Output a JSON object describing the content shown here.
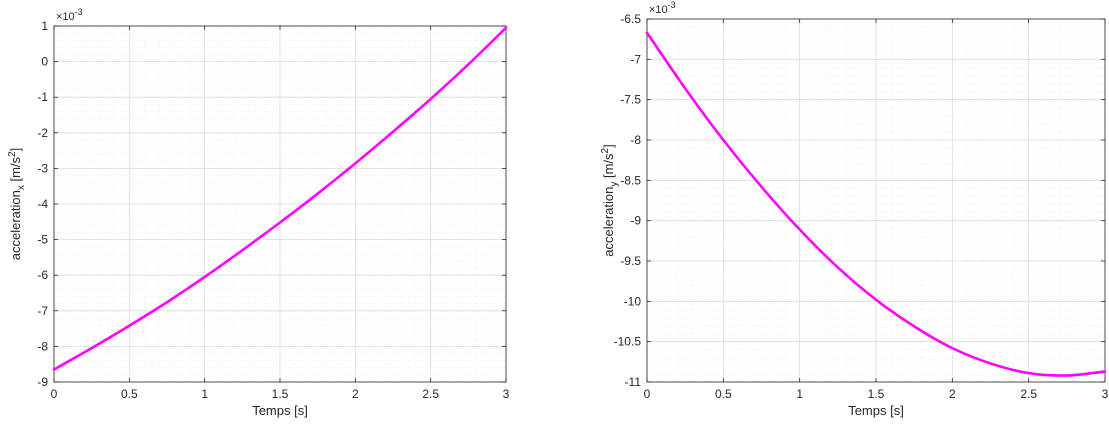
{
  "chart_data": [
    {
      "type": "line",
      "xlabel": "Temps [s]",
      "ylabel_main": "acceleration",
      "ylabel_sub": "x",
      "ylabel_unit_pre": " [m/s",
      "ylabel_unit_sup": "2",
      "ylabel_unit_post": "]",
      "exponent_base": "×10",
      "exponent_power": "-3",
      "xlim": [
        0,
        3
      ],
      "ylim": [
        -9,
        1
      ],
      "xticks": [
        0,
        0.5,
        1,
        1.5,
        2,
        2.5,
        3
      ],
      "yticks": [
        -9,
        -8,
        -7,
        -6,
        -5,
        -4,
        -3,
        -2,
        -1,
        0,
        1
      ],
      "grid": true,
      "minor_grid": true,
      "series": [
        {
          "color": "#ff00ff",
          "x": [
            0,
            0.25,
            0.5,
            0.75,
            1,
            1.25,
            1.5,
            1.75,
            2,
            2.25,
            2.5,
            2.75,
            3
          ],
          "y": [
            -8.65,
            -8.05,
            -7.42,
            -6.76,
            -6.05,
            -5.3,
            -4.52,
            -3.71,
            -2.86,
            -1.97,
            -1.05,
            -0.08,
            0.95
          ]
        }
      ]
    },
    {
      "type": "line",
      "xlabel": "Temps [s]",
      "ylabel_main": "acceleration",
      "ylabel_sub": "y",
      "ylabel_unit_pre": " [m/s",
      "ylabel_unit_sup": "2",
      "ylabel_unit_post": "]",
      "exponent_base": "×10",
      "exponent_power": "-3",
      "xlim": [
        0,
        3
      ],
      "ylim": [
        -11,
        -6.5
      ],
      "xticks": [
        0,
        0.5,
        1,
        1.5,
        2,
        2.5,
        3
      ],
      "yticks": [
        -11,
        -10.5,
        -10,
        -9.5,
        -9,
        -8.5,
        -8,
        -7.5,
        -7,
        -6.5
      ],
      "grid": true,
      "minor_grid": true,
      "series": [
        {
          "color": "#ff00ff",
          "x": [
            0,
            0.25,
            0.5,
            0.75,
            1,
            1.25,
            1.5,
            1.75,
            2,
            2.25,
            2.5,
            2.75,
            3
          ],
          "y": [
            -6.67,
            -7.36,
            -8.0,
            -8.58,
            -9.11,
            -9.58,
            -9.98,
            -10.31,
            -10.58,
            -10.77,
            -10.89,
            -10.92,
            -10.87
          ]
        }
      ]
    }
  ]
}
